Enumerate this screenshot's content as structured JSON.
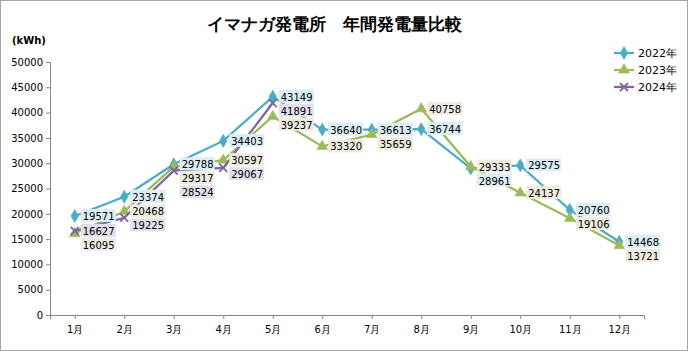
{
  "chart_data": {
    "type": "line",
    "title": "イマナガ発電所　年間発電量比較",
    "ylabel": "(kWh)",
    "categories": [
      "1月",
      "2月",
      "3月",
      "4月",
      "5月",
      "6月",
      "7月",
      "8月",
      "9月",
      "10月",
      "11月",
      "12月"
    ],
    "series": [
      {
        "name": "2022年",
        "color": "#4bacc6",
        "marker": "diamond",
        "values": [
          19571,
          23374,
          29788,
          34403,
          43149,
          36640,
          36613,
          36744,
          28961,
          29575,
          20760,
          14468
        ]
      },
      {
        "name": "2023年",
        "color": "#9bbb59",
        "marker": "triangle",
        "values": [
          16095,
          20468,
          29317,
          30597,
          39237,
          33320,
          35659,
          40758,
          29333,
          24137,
          19106,
          13721
        ]
      },
      {
        "name": "2024年",
        "color": "#8064a2",
        "marker": "x",
        "values": [
          16627,
          19225,
          28524,
          29067,
          41891,
          null,
          null,
          null,
          null,
          null,
          null,
          null
        ]
      }
    ],
    "ylim": [
      0,
      50000
    ],
    "yticks": [
      0,
      5000,
      10000,
      15000,
      20000,
      25000,
      30000,
      35000,
      40000,
      45000,
      50000
    ],
    "grid": false,
    "legend": "top-right",
    "data_labels": true
  }
}
